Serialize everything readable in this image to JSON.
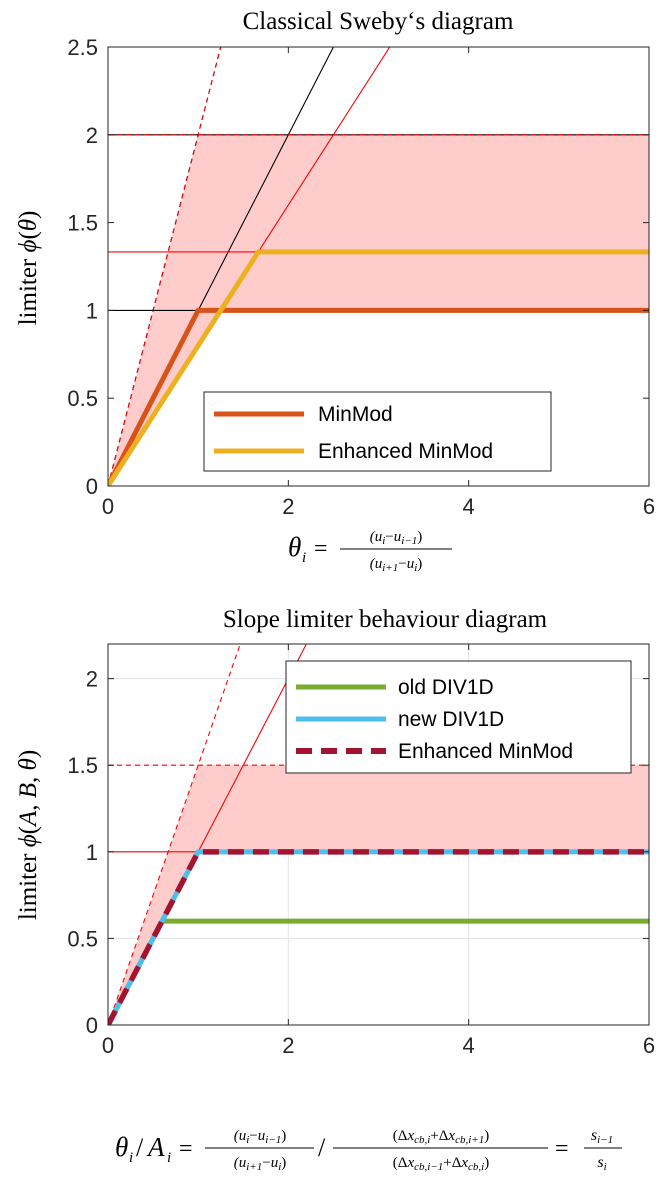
{
  "chart_data": [
    {
      "type": "line",
      "title": "Classical Sweby‘s diagram",
      "xlabel": "θᵢ = (uᵢ−uᵢ₋₁)/(uᵢ₊₁−uᵢ)",
      "ylabel": "limiter φ(θ)",
      "xlim": [
        0,
        6
      ],
      "ylim": [
        0,
        2.5
      ],
      "xticks": [
        "0",
        "2",
        "4",
        "6"
      ],
      "yticks": [
        "0",
        "0.5",
        "1",
        "1.5",
        "2",
        "2.5"
      ],
      "grid": false,
      "legend": "lower-center",
      "series": [
        {
          "name": "MinMod",
          "color": "#D95319",
          "points": [
            [
              0,
              0
            ],
            [
              1,
              1
            ],
            [
              6,
              1
            ]
          ]
        },
        {
          "name": "Enhanced MinMod",
          "color": "#EDB120",
          "points": [
            [
              0,
              0
            ],
            [
              1.667,
              1.333
            ],
            [
              6,
              1.333
            ]
          ]
        }
      ],
      "reference_lines": [
        {
          "kind": "slope",
          "slope": 1,
          "color": "#000000",
          "style": "solid"
        },
        {
          "kind": "slope",
          "slope": 2,
          "color": "#000000",
          "style": "dashed"
        },
        {
          "kind": "slope",
          "slope": 2,
          "color": "#ff0000",
          "style": "dashed"
        },
        {
          "kind": "slope",
          "slope": 0.8,
          "color": "#ff0000",
          "style": "solid"
        },
        {
          "kind": "horizontal",
          "y": 1,
          "color": "#000000",
          "style": "solid"
        },
        {
          "kind": "horizontal",
          "y": 2,
          "color": "#000000",
          "style": "solid"
        },
        {
          "kind": "horizontal",
          "y": 2,
          "color": "#ff0000",
          "style": "dashed"
        },
        {
          "kind": "horizontal",
          "y": 1.333,
          "color": "#ff0000",
          "style": "solid"
        }
      ],
      "shaded_region": {
        "color": "#ffcccc",
        "description": "TVD region"
      }
    },
    {
      "type": "line",
      "title": "Slope limiter behaviour diagram",
      "xlabel": "θᵢ/Aᵢ = (uᵢ−uᵢ₋₁)/(uᵢ₊₁−uᵢ) / (Δx_cb,i+Δx_cb,i+1)/(Δx_cb,i−1+Δx_cb,i) = sᵢ₋₁/sᵢ",
      "ylabel": "limiter φ(A, B, θ)",
      "xlim": [
        0,
        6
      ],
      "ylim": [
        0,
        2.2
      ],
      "xticks": [
        "0",
        "2",
        "4",
        "6"
      ],
      "yticks": [
        "0",
        "0.5",
        "1",
        "1.5",
        "2"
      ],
      "grid": true,
      "legend": "top-right",
      "series": [
        {
          "name": "old DIV1D",
          "color": "#77AC30",
          "style": "solid",
          "points": [
            [
              0,
              0
            ],
            [
              0.6,
              0.6
            ],
            [
              6,
              0.6
            ]
          ]
        },
        {
          "name": "new DIV1D",
          "color": "#4DBEEE",
          "style": "solid",
          "points": [
            [
              0,
              0
            ],
            [
              1,
              1
            ],
            [
              6,
              1
            ]
          ]
        },
        {
          "name": "Enhanced MinMod",
          "color": "#A2142F",
          "style": "dashed",
          "points": [
            [
              0,
              0
            ],
            [
              1,
              1
            ],
            [
              6,
              1
            ]
          ]
        }
      ],
      "reference_lines": [
        {
          "kind": "slope",
          "slope": 1.5,
          "color": "#ff0000",
          "style": "dashed"
        },
        {
          "kind": "slope",
          "slope": 1,
          "color": "#ff0000",
          "style": "solid"
        },
        {
          "kind": "horizontal",
          "y": 1.5,
          "color": "#ff0000",
          "style": "dashed"
        },
        {
          "kind": "horizontal",
          "y": 1,
          "color": "#ff0000",
          "style": "solid"
        }
      ],
      "shaded_region": {
        "color": "#ffcccc",
        "description": "TVD region"
      }
    }
  ]
}
